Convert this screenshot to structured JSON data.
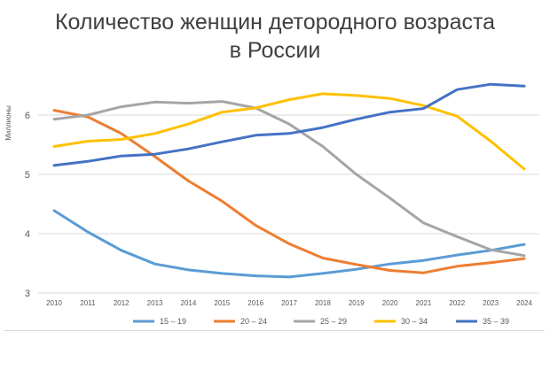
{
  "chart_data": {
    "type": "line",
    "title_line1": "Количество женщин детородного возраста",
    "title_line2": "в России",
    "xlabel": "",
    "ylabel": "Миллионы",
    "ylim": [
      3,
      6.8
    ],
    "yticks": [
      3,
      4,
      5,
      6
    ],
    "grid": true,
    "legend_position": "bottom",
    "categories": [
      "2010",
      "2011",
      "2012",
      "2013",
      "2014",
      "2015",
      "2016",
      "2017",
      "2018",
      "2019",
      "2020",
      "2021",
      "2022",
      "2023",
      "2024"
    ],
    "series": [
      {
        "name": "15 – 19",
        "color": "#5b9bd5",
        "values": [
          4.39,
          4.03,
          3.72,
          3.49,
          3.39,
          3.33,
          3.29,
          3.27,
          3.33,
          3.4,
          3.49,
          3.55,
          3.64,
          3.72,
          3.82
        ]
      },
      {
        "name": "20 – 24",
        "color": "#ed7d31",
        "values": [
          6.08,
          5.97,
          5.69,
          5.3,
          4.89,
          4.55,
          4.14,
          3.83,
          3.59,
          3.48,
          3.38,
          3.34,
          3.45,
          3.51,
          3.58
        ]
      },
      {
        "name": "25 – 29",
        "color": "#a5a5a5",
        "values": [
          5.93,
          6.0,
          6.14,
          6.22,
          6.2,
          6.23,
          6.12,
          5.85,
          5.47,
          5.0,
          4.6,
          4.18,
          3.95,
          3.73,
          3.63
        ]
      },
      {
        "name": "30 – 34",
        "color": "#ffc000",
        "values": [
          5.47,
          5.56,
          5.59,
          5.69,
          5.85,
          6.05,
          6.12,
          6.26,
          6.36,
          6.33,
          6.28,
          6.16,
          5.98,
          5.56,
          5.09
        ]
      },
      {
        "name": "35 – 39",
        "color": "#4472c4",
        "values": [
          5.15,
          5.22,
          5.31,
          5.34,
          5.43,
          5.55,
          5.66,
          5.69,
          5.79,
          5.93,
          6.05,
          6.11,
          6.43,
          6.52,
          6.49
        ]
      }
    ]
  }
}
